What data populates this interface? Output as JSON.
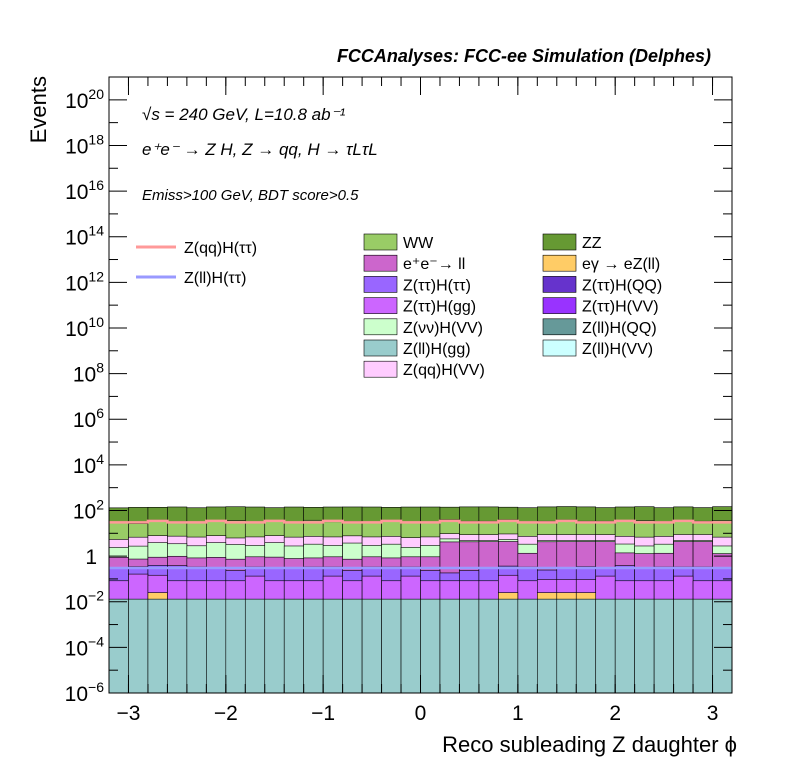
{
  "chart_data": {
    "type": "bar",
    "stacked": true,
    "title": "FCCAnalyses: FCC-ee Simulation (Delphes)",
    "xlabel": "Reco subleading Z daughter ϕ",
    "ylabel": "Events",
    "yscale": "log",
    "xlim": [
      -3.2,
      3.2
    ],
    "ylim": [
      1e-06,
      1e+21
    ],
    "x_ticks": [
      -3,
      -2,
      -1,
      0,
      1,
      2,
      3
    ],
    "x_tick_labels": [
      "−3",
      "−2",
      "−1",
      "0",
      "1",
      "2",
      "3"
    ],
    "y_ticks": [
      {
        "exp": -6,
        "label": "10",
        "sup": "−6"
      },
      {
        "exp": -4,
        "label": "10",
        "sup": "−4"
      },
      {
        "exp": -2,
        "label": "10",
        "sup": "−2"
      },
      {
        "exp": 0,
        "label": "1",
        "sup": ""
      },
      {
        "exp": 2,
        "label": "10",
        "sup": "2"
      },
      {
        "exp": 4,
        "label": "10",
        "sup": "4"
      },
      {
        "exp": 6,
        "label": "10",
        "sup": "6"
      },
      {
        "exp": 8,
        "label": "10",
        "sup": "8"
      },
      {
        "exp": 10,
        "label": "10",
        "sup": "10"
      },
      {
        "exp": 12,
        "label": "10",
        "sup": "12"
      },
      {
        "exp": 14,
        "label": "10",
        "sup": "14"
      },
      {
        "exp": 16,
        "label": "10",
        "sup": "16"
      },
      {
        "exp": 18,
        "label": "10",
        "sup": "18"
      },
      {
        "exp": 20,
        "label": "10",
        "sup": "20"
      }
    ],
    "annotations": {
      "line1": "√s = 240 GeV, L=10.8 ab⁻¹",
      "line2": "e⁺e⁻ → Z H, Z → qq, H → τLτL",
      "line3": "Emiss>100 GeV, BDT score>0.5"
    },
    "bin_edges": [
      -3.2,
      -3.0,
      -2.8,
      -2.6,
      -2.4,
      -2.2,
      -2.0,
      -1.8,
      -1.6,
      -1.4,
      -1.2,
      -1.0,
      -0.8,
      -0.6,
      -0.4,
      -0.2,
      0.0,
      0.2,
      0.4,
      0.6,
      0.8,
      1.0,
      1.2,
      1.4,
      1.6,
      1.8,
      2.0,
      2.2,
      2.4,
      2.6,
      2.8,
      3.0,
      3.2
    ],
    "stack_order": [
      "Z(ll)H(gg)",
      "eγ → eZ(ll)",
      "Z(ττ)H(gg)",
      "Z(ττ)H(ττ)",
      "e+e-→ ll",
      "Z(νν)H(VV)",
      "Z(qq)H(VV)",
      "WW",
      "ZZ"
    ],
    "series": [
      {
        "name": "Z(ll)H(gg)",
        "color": "#99cccc",
        "values": [
          0.013,
          0.013,
          0.013,
          0.013,
          0.013,
          0.013,
          0.013,
          0.013,
          0.013,
          0.013,
          0.013,
          0.013,
          0.013,
          0.013,
          0.013,
          0.013,
          0.013,
          0.013,
          0.013,
          0.013,
          0.013,
          0.013,
          0.013,
          0.013,
          0.013,
          0.013,
          0.013,
          0.013,
          0.013,
          0.013,
          0.013,
          0.013
        ]
      },
      {
        "name": "eγ → eZ(ll)",
        "color": "#ffcc66",
        "values": [
          0,
          0,
          0.012,
          0,
          0,
          0,
          0,
          0,
          0,
          0,
          0,
          0,
          0,
          0,
          0,
          0,
          0,
          0,
          0,
          0,
          0.012,
          0,
          0.012,
          0.012,
          0.012,
          0,
          0,
          0,
          0,
          0,
          0,
          0
        ]
      },
      {
        "name": "Z(ττ)H(gg)",
        "color": "#cc66ff",
        "values": [
          0.07,
          0.15,
          0.12,
          0.07,
          0.07,
          0.07,
          0.07,
          0.12,
          0.07,
          0.07,
          0.07,
          0.12,
          0.07,
          0.12,
          0.07,
          0.12,
          0.07,
          0.07,
          0.07,
          0.07,
          0.12,
          0.07,
          0.07,
          0.07,
          0.07,
          0.12,
          0.07,
          0.07,
          0.07,
          0.12,
          0.07,
          0.07
        ]
      },
      {
        "name": "Z(ττ)H(ττ)",
        "color": "#9966ff",
        "values": [
          0.2,
          0.18,
          0.25,
          0.3,
          0.25,
          0.2,
          0.15,
          0.2,
          0.22,
          0.2,
          0.25,
          0.2,
          0.15,
          0.2,
          0.25,
          0.2,
          0.15,
          0.1,
          0.15,
          0.2,
          0.22,
          0.25,
          0.15,
          0.2,
          0.25,
          0.15,
          0.3,
          0.2,
          0.25,
          0.2,
          0.25,
          0.2
        ]
      },
      {
        "name": "e+e-→ ll",
        "color": "#cc66cc",
        "values": [
          0.6,
          0.4,
          0.5,
          0.6,
          0.5,
          0.6,
          0.5,
          0.6,
          0.6,
          0.5,
          0.5,
          0.6,
          0.5,
          0.6,
          0.5,
          0.6,
          0.7,
          4.0,
          4.0,
          4.0,
          4.0,
          1.0,
          4.0,
          4.0,
          4.0,
          4.0,
          1.0,
          1.0,
          1.0,
          4.0,
          4.0,
          1.0
        ]
      },
      {
        "name": "Z(νν)H(VV)",
        "color": "#ccffcc",
        "values": [
          1.5,
          2.0,
          3.0,
          2.5,
          2.0,
          3.0,
          2.5,
          2.0,
          3.0,
          2.0,
          2.5,
          2.0,
          3.0,
          2.0,
          2.5,
          1.5,
          2.0,
          1.5,
          0.5,
          0.5,
          1.0,
          2.0,
          0.5,
          0.5,
          0.5,
          0.5,
          2.0,
          1.5,
          2.0,
          0.5,
          0.5,
          1.5
        ]
      },
      {
        "name": "Z(qq)H(VV)",
        "color": "#ffccff",
        "values": [
          3.0,
          4.0,
          4.0,
          4.0,
          4.0,
          4.0,
          3.0,
          4.0,
          4.0,
          4.0,
          4.0,
          4.0,
          4.0,
          4.0,
          4.0,
          4.0,
          4.0,
          4.0,
          4.0,
          4.0,
          4.0,
          4.0,
          4.0,
          4.0,
          4.0,
          4.0,
          4.0,
          4.0,
          4.0,
          4.0,
          4.0,
          4.0
        ]
      },
      {
        "name": "WW",
        "color": "#99cc66",
        "values": [
          25,
          20,
          30,
          25,
          25,
          25,
          30,
          25,
          25,
          25,
          30,
          25,
          25,
          25,
          30,
          25,
          25,
          30,
          25,
          25,
          30,
          25,
          25,
          30,
          25,
          25,
          25,
          30,
          25,
          25,
          25,
          30
        ]
      },
      {
        "name": "ZZ",
        "color": "#669933",
        "values": [
          100,
          110,
          100,
          110,
          100,
          110,
          110,
          110,
          100,
          110,
          100,
          110,
          110,
          110,
          100,
          110,
          110,
          100,
          110,
          110,
          100,
          100,
          110,
          110,
          110,
          100,
          110,
          110,
          100,
          110,
          100,
          110
        ]
      }
    ],
    "overlays": [
      {
        "name": "Z(qq)H(ττ)",
        "color": "#ff9999",
        "style": "line",
        "values": [
          30,
          30,
          35,
          30,
          30,
          35,
          30,
          30,
          35,
          30,
          30,
          35,
          30,
          30,
          35,
          30,
          30,
          35,
          30,
          30,
          35,
          30,
          30,
          35,
          30,
          30,
          35,
          30,
          30,
          35,
          30,
          30
        ]
      },
      {
        "name": "Z(ll)H(ττ)",
        "color": "#9999ff",
        "style": "line",
        "values": [
          0.3,
          0.3,
          0.3,
          0.3,
          0.3,
          0.3,
          0.3,
          0.3,
          0.3,
          0.3,
          0.3,
          0.3,
          0.3,
          0.3,
          0.3,
          0.3,
          0.3,
          0.3,
          0.3,
          0.3,
          0.3,
          0.3,
          0.3,
          0.3,
          0.3,
          0.3,
          0.3,
          0.3,
          0.3,
          0.3,
          0.3,
          0.3
        ]
      }
    ],
    "legend_lines": [
      {
        "name": "Z(qq)H(ττ)",
        "color": "#ff9999"
      },
      {
        "name": "Z(ll)H(ττ)",
        "color": "#9999ff"
      }
    ],
    "legend_boxes_left": [
      {
        "name": "WW",
        "color": "#99cc66"
      },
      {
        "name": "e⁺e⁻→ ll",
        "color": "#cc66cc"
      },
      {
        "name": "Z(ττ)H(ττ)",
        "color": "#9966ff"
      },
      {
        "name": "Z(ττ)H(gg)",
        "color": "#cc66ff"
      },
      {
        "name": "Z(νν)H(VV)",
        "color": "#ccffcc"
      },
      {
        "name": "Z(ll)H(gg)",
        "color": "#99cccc"
      },
      {
        "name": "Z(qq)H(VV)",
        "color": "#ffccff"
      }
    ],
    "legend_boxes_right": [
      {
        "name": "ZZ",
        "color": "#669933"
      },
      {
        "name": "eγ → eZ(ll)",
        "color": "#ffcc66"
      },
      {
        "name": "Z(ττ)H(QQ)",
        "color": "#6633cc"
      },
      {
        "name": "Z(ττ)H(VV)",
        "color": "#9933ff"
      },
      {
        "name": "Z(ll)H(QQ)",
        "color": "#669999"
      },
      {
        "name": "Z(ll)H(VV)",
        "color": "#ccffff"
      }
    ],
    "legend_placement": "top",
    "grid": false
  }
}
